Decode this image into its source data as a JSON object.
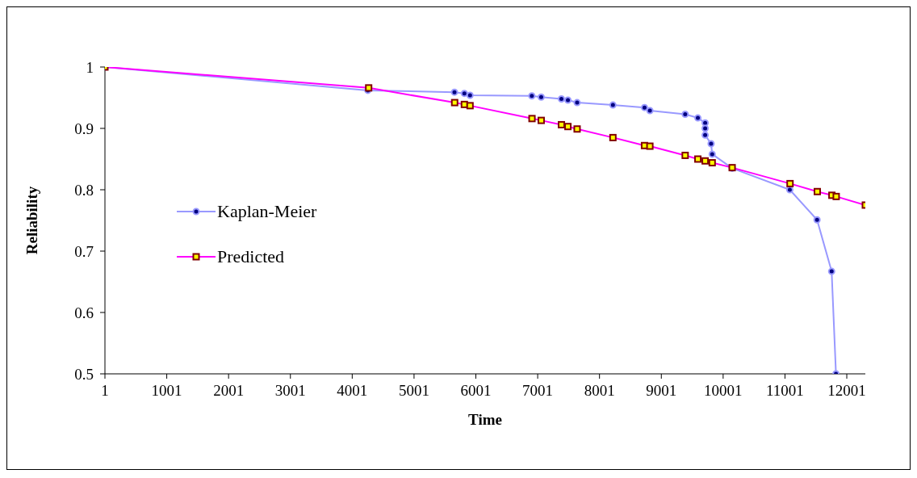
{
  "chart_data": {
    "type": "line",
    "xlabel": "Time",
    "ylabel": "Reliability",
    "xlim": [
      1,
      12301
    ],
    "xticks": [
      1,
      1001,
      2001,
      3001,
      4001,
      5001,
      6001,
      7001,
      8001,
      9001,
      10001,
      11001,
      12001
    ],
    "ylim": [
      0.5,
      1
    ],
    "yticks": [
      0.5,
      0.6,
      0.7,
      0.8,
      0.9,
      1
    ],
    "grid": false,
    "legend": "left",
    "series": [
      {
        "name": "Kaplan-Meier",
        "color": "#9999ff",
        "marker": "circle",
        "x": [
          1,
          4254,
          5655,
          5815,
          5907,
          6906,
          7058,
          7385,
          7490,
          7639,
          8218,
          8729,
          8816,
          9387,
          9592,
          9710,
          9710,
          9710,
          9806,
          9824,
          10147,
          11079,
          11520,
          11756,
          11826
        ],
        "values": [
          1,
          0.962,
          0.959,
          0.957,
          0.954,
          0.953,
          0.951,
          0.948,
          0.946,
          0.942,
          0.938,
          0.934,
          0.929,
          0.923,
          0.917,
          0.909,
          0.9,
          0.889,
          0.875,
          0.858,
          0.835,
          0.8,
          0.751,
          0.667,
          0.5
        ]
      },
      {
        "name": "Predicted",
        "color": "#ff00ff",
        "marker": "square",
        "x": [
          1,
          4267,
          5658,
          5815,
          5907,
          6909,
          7058,
          7385,
          7490,
          7639,
          8218,
          8729,
          8816,
          9387,
          9592,
          9710,
          9824,
          10147,
          11083,
          11524,
          11760,
          11830,
          12301
        ],
        "values": [
          1,
          0.966,
          0.942,
          0.939,
          0.937,
          0.916,
          0.913,
          0.906,
          0.903,
          0.899,
          0.885,
          0.872,
          0.871,
          0.856,
          0.85,
          0.847,
          0.844,
          0.836,
          0.81,
          0.797,
          0.791,
          0.789,
          0.775
        ]
      }
    ]
  }
}
